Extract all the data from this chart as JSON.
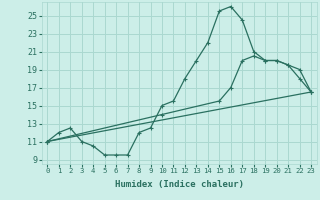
{
  "title": "",
  "xlabel": "Humidex (Indice chaleur)",
  "bg_color": "#cceee8",
  "grid_color": "#aad8d0",
  "line_color": "#2a7060",
  "xlim": [
    -0.5,
    23.5
  ],
  "ylim": [
    8.5,
    26.5
  ],
  "xticks": [
    0,
    1,
    2,
    3,
    4,
    5,
    6,
    7,
    8,
    9,
    10,
    11,
    12,
    13,
    14,
    15,
    16,
    17,
    18,
    19,
    20,
    21,
    22,
    23
  ],
  "yticks": [
    9,
    11,
    13,
    15,
    17,
    19,
    21,
    23,
    25
  ],
  "line1_x": [
    0,
    1,
    2,
    3,
    4,
    5,
    6,
    7,
    8,
    9,
    10,
    11,
    12,
    13,
    14,
    15,
    16,
    17,
    18,
    19,
    20,
    21,
    22,
    23
  ],
  "line1_y": [
    11,
    12,
    12.5,
    11,
    10.5,
    9.5,
    9.5,
    9.5,
    12,
    12.5,
    15,
    15.5,
    18,
    20,
    22,
    25.5,
    26,
    24.5,
    21,
    20,
    20,
    19.5,
    18,
    16.5
  ],
  "line2_x": [
    0,
    10,
    15,
    16,
    17,
    18,
    19,
    20,
    21,
    22,
    23
  ],
  "line2_y": [
    11,
    14,
    15.5,
    17,
    20,
    20.5,
    20,
    20,
    19.5,
    19,
    16.5
  ],
  "line3_x": [
    0,
    23
  ],
  "line3_y": [
    11,
    16.5
  ]
}
